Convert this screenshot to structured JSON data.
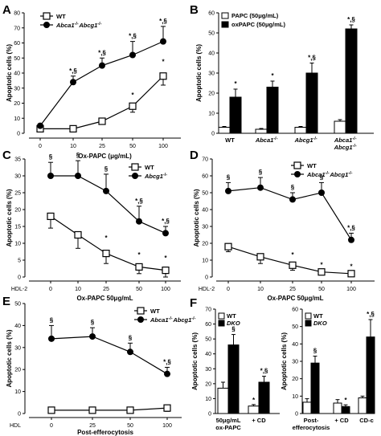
{
  "chart_data": [
    {
      "panel": "A",
      "type": "line",
      "x": [
        "0",
        "10",
        "25",
        "50",
        "100"
      ],
      "xlabel": "Ox-PAPC (μg/mL)",
      "ylabel": "Apoptotic cells (%)",
      "ylim": [
        0,
        80
      ],
      "yticks": [
        "0",
        "10",
        "20",
        "30",
        "40",
        "50",
        "60",
        "70",
        "80"
      ],
      "legend_position": "top-left",
      "series": [
        {
          "name": "WT",
          "marker": "open-square",
          "values": [
            3,
            3,
            8,
            18,
            38
          ],
          "err": [
            1,
            1,
            2,
            4,
            6
          ]
        },
        {
          "name": "Abca1-/-Abcg1-/-",
          "marker": "filled-circle",
          "values": [
            5,
            34,
            45,
            52,
            61
          ],
          "err": [
            1,
            4,
            5,
            9,
            10
          ]
        }
      ],
      "annotations": [
        {
          "x": "10",
          "text": "*,§"
        },
        {
          "x": "25",
          "text": "*,§"
        },
        {
          "x": "50",
          "text": "*,§"
        },
        {
          "x": "100",
          "text": "*,§"
        },
        {
          "x": "50",
          "text": "*"
        },
        {
          "x": "100",
          "text": "*"
        }
      ]
    },
    {
      "panel": "B",
      "type": "bar",
      "categories": [
        "WT",
        "Abca1-/-",
        "Abcg1-/-",
        "Abca1-/- Abcg1-/-"
      ],
      "ylabel": "Apoptotic cells (%)",
      "ylim": [
        0,
        60
      ],
      "yticks": [
        "0",
        "10",
        "20",
        "30",
        "40",
        "50",
        "60"
      ],
      "legend_position": "top-left",
      "series": [
        {
          "name": "PAPC (50μg/mL)",
          "fill": "white",
          "values": [
            3,
            2,
            3,
            6
          ],
          "err": [
            0.4,
            0.4,
            0.4,
            0.8
          ]
        },
        {
          "name": "oxPAPC (50μg/mL)",
          "fill": "black",
          "values": [
            18,
            23,
            30,
            52
          ],
          "err": [
            4,
            3,
            5,
            2
          ]
        }
      ],
      "annotations": [
        {
          "category": "WT",
          "text": "*"
        },
        {
          "category": "Abca1-/-",
          "text": "*"
        },
        {
          "category": "Abcg1-/-",
          "text": "*,§"
        },
        {
          "category": "Abca1-/- Abcg1-/-",
          "text": "*,§"
        }
      ]
    },
    {
      "panel": "C",
      "type": "line",
      "x": [
        "0",
        "10",
        "25",
        "50",
        "100"
      ],
      "xlabel": "Ox-PAPC 50μg/mL",
      "row_label": "HDL-2",
      "ylabel": "Apoptotic cells (%)",
      "ylim": [
        0,
        35
      ],
      "yticks": [
        "0",
        "5",
        "10",
        "15",
        "20",
        "25",
        "30",
        "35"
      ],
      "legend_position": "top-right",
      "series": [
        {
          "name": "WT",
          "marker": "open-square",
          "values": [
            18,
            12.5,
            7,
            3,
            2
          ],
          "err": [
            3.5,
            4,
            3,
            2,
            2
          ]
        },
        {
          "name": "Abcg1-/-",
          "marker": "filled-circle",
          "values": [
            30,
            30,
            25.5,
            16.5,
            13
          ],
          "err": [
            4,
            4.5,
            5,
            4.5,
            2
          ]
        }
      ],
      "annotations": [
        {
          "x": "0",
          "text": "§"
        },
        {
          "x": "10",
          "text": "§"
        },
        {
          "x": "25",
          "text": "§"
        },
        {
          "x": "50",
          "text": "*,§"
        },
        {
          "x": "100",
          "text": "*,§"
        },
        {
          "x": "25",
          "text": "*"
        },
        {
          "x": "50",
          "text": "*"
        },
        {
          "x": "100",
          "text": "*"
        }
      ]
    },
    {
      "panel": "D",
      "type": "line",
      "x": [
        "0",
        "10",
        "25",
        "50",
        "100"
      ],
      "xlabel": "Ox-PAPC 50μg/mL",
      "row_label": "HDL-2",
      "ylabel": "Apoptotic cells (%)",
      "ylim": [
        0,
        70
      ],
      "yticks": [
        "0",
        "10",
        "20",
        "30",
        "40",
        "50",
        "60",
        "70"
      ],
      "legend_position": "top-right",
      "series": [
        {
          "name": "WT",
          "marker": "open-square",
          "values": [
            18,
            12,
            7,
            3,
            2
          ],
          "err": [
            3,
            4,
            3,
            1,
            1
          ]
        },
        {
          "name": "Abca1-/-Abcg1-/-",
          "marker": "filled-circle",
          "values": [
            51,
            53,
            46,
            50,
            22
          ],
          "err": [
            5,
            6,
            4,
            6,
            4
          ]
        }
      ],
      "annotations": [
        {
          "x": "0",
          "text": "§"
        },
        {
          "x": "10",
          "text": "§"
        },
        {
          "x": "25",
          "text": "§"
        },
        {
          "x": "50",
          "text": "§"
        },
        {
          "x": "100",
          "text": "*,§"
        },
        {
          "x": "25",
          "text": "*"
        },
        {
          "x": "50",
          "text": "*"
        },
        {
          "x": "100",
          "text": "*"
        }
      ]
    },
    {
      "panel": "E",
      "type": "line",
      "x": [
        "0",
        "25",
        "50",
        "100"
      ],
      "xlabel": "Post-efferocytosis",
      "row_label": "HDL",
      "ylabel": "Apoptotic cells (%)",
      "ylim": [
        0,
        50
      ],
      "yticks": [
        "0",
        "10",
        "20",
        "30",
        "40",
        "50"
      ],
      "legend_position": "top-right",
      "series": [
        {
          "name": "WT",
          "marker": "open-square",
          "values": [
            1.5,
            1.5,
            1.5,
            2.5
          ],
          "err": [
            1,
            1,
            1,
            1.5
          ]
        },
        {
          "name": "Abca1-/-Abcg1-/-",
          "marker": "filled-circle",
          "values": [
            34,
            35,
            28,
            18
          ],
          "err": [
            6,
            4,
            4,
            3
          ]
        }
      ],
      "annotations": [
        {
          "x": "0",
          "text": "§"
        },
        {
          "x": "25",
          "text": "§"
        },
        {
          "x": "50",
          "text": "§"
        },
        {
          "x": "100",
          "text": "*,§"
        }
      ]
    },
    {
      "panel": "F-left",
      "type": "bar",
      "categories": [
        "50μg/mL ox-PAPC",
        "+ CD"
      ],
      "ylabel": "Apoptotic cells (%)",
      "ylim": [
        0,
        70
      ],
      "yticks": [
        "0",
        "10",
        "20",
        "30",
        "40",
        "50",
        "60",
        "70"
      ],
      "legend_position": "top-left",
      "series": [
        {
          "name": "WT",
          "fill": "white",
          "values": [
            17,
            5
          ],
          "err": [
            4,
            1
          ]
        },
        {
          "name": "DKO",
          "fill": "black",
          "values": [
            46,
            21
          ],
          "err": [
            7,
            4
          ]
        }
      ],
      "annotations": [
        {
          "category": "50μg/mL ox-PAPC",
          "text": "§"
        },
        {
          "category": "+ CD",
          "text": "*,§"
        },
        {
          "category": "+ CD",
          "text": "*"
        }
      ]
    },
    {
      "panel": "F-right",
      "type": "bar",
      "categories": [
        "Post-efferocytosis",
        "+ CD",
        "CD-c"
      ],
      "ylabel": "Apoptotic cells (%)",
      "ylim": [
        0,
        60
      ],
      "yticks": [
        "0",
        "10",
        "20",
        "30",
        "40",
        "50",
        "60"
      ],
      "legend_position": "top-left",
      "series": [
        {
          "name": "WT",
          "fill": "white",
          "values": [
            6.5,
            6,
            9
          ],
          "err": [
            2,
            2,
            1
          ]
        },
        {
          "name": "DKO",
          "fill": "black",
          "values": [
            29,
            4,
            44
          ],
          "err": [
            4,
            1,
            10
          ]
        }
      ],
      "annotations": [
        {
          "category": "Post-efferocytosis",
          "text": "§"
        },
        {
          "category": "+ CD",
          "text": "*"
        },
        {
          "category": "CD-c",
          "text": "*,§"
        }
      ]
    }
  ]
}
